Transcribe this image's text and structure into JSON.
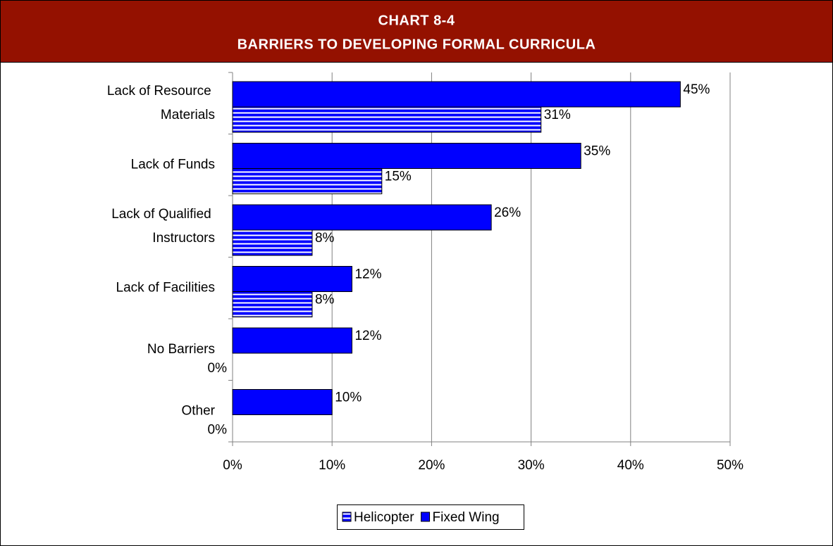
{
  "chart_data": {
    "type": "hbar",
    "title": "CHART 8-4",
    "subtitle": "BARRIERS TO DEVELOPING FORMAL CURRICULA",
    "categories": [
      "Lack of Resource Materials",
      "Lack of Funds",
      "Lack of Qualified Instructors",
      "Lack of Facilities",
      "No Barriers",
      "Other"
    ],
    "series": [
      {
        "name": "Fixed Wing",
        "color": "#0000ff",
        "values": [
          45,
          35,
          26,
          12,
          12,
          10
        ],
        "value_labels": [
          "45%",
          "35%",
          "26%",
          "12%",
          "12%",
          "10%"
        ]
      },
      {
        "name": "Helicopter",
        "color": "#0000ff",
        "pattern": "horizontal-stripes",
        "values": [
          31,
          15,
          8,
          8,
          0,
          0
        ],
        "value_labels": [
          "31%",
          "15%",
          "8%",
          "8%",
          "0%",
          "0%"
        ]
      }
    ],
    "xlim": [
      0,
      50
    ],
    "xticks": [
      {
        "value": 0,
        "label": "0%"
      },
      {
        "value": 10,
        "label": "10%"
      },
      {
        "value": 20,
        "label": "20%"
      },
      {
        "value": 30,
        "label": "30%"
      },
      {
        "value": 40,
        "label": "40%"
      },
      {
        "value": 50,
        "label": "50%"
      }
    ],
    "grid": true,
    "legend": "bottom"
  }
}
